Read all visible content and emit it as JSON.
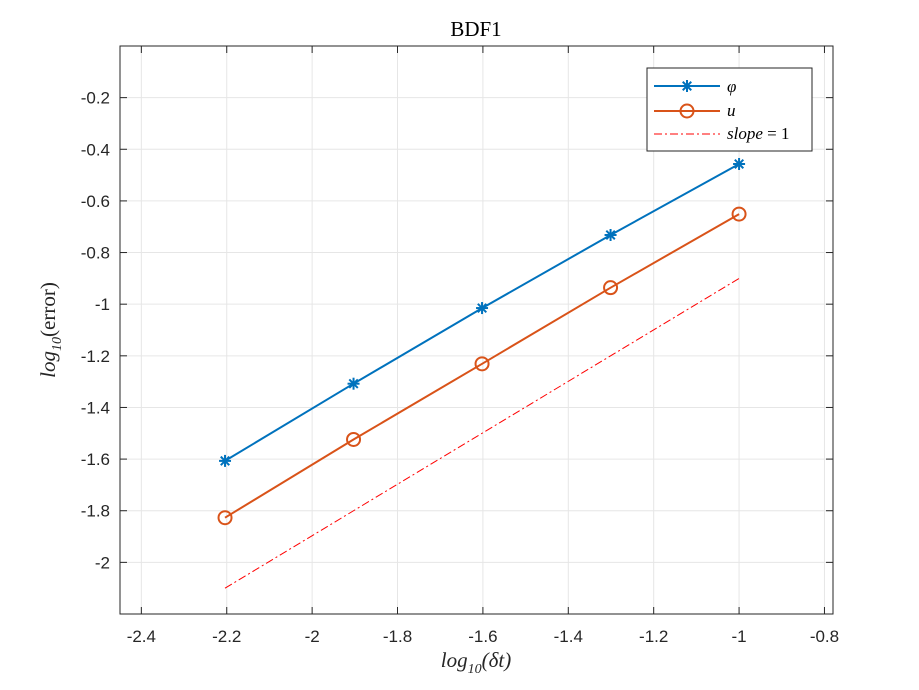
{
  "chart_data": {
    "type": "line",
    "title": "BDF1",
    "xlabel": {
      "base": "log",
      "sub": "10",
      "paren": "(δt)"
    },
    "ylabel": {
      "base": "log",
      "sub": "10",
      "paren": "(error)"
    },
    "xlim": [
      -2.45,
      -0.78
    ],
    "ylim": [
      -2.2,
      0.0
    ],
    "xticks": [
      -2.4,
      -2.2,
      -2.0,
      -1.8,
      -1.6,
      -1.4,
      -1.2,
      -1.0,
      -0.8
    ],
    "xtick_labels": [
      "-2.4",
      "-2.2",
      "-2",
      "-1.8",
      "-1.6",
      "-1.4",
      "-1.2",
      "-1",
      "-0.8"
    ],
    "yticks": [
      -2.0,
      -1.8,
      -1.6,
      -1.4,
      -1.2,
      -1.0,
      -0.8,
      -0.6,
      -0.4,
      -0.2
    ],
    "ytick_labels": [
      "-2",
      "-1.8",
      "-1.6",
      "-1.4",
      "-1.2",
      "-1",
      "-0.8",
      "-0.6",
      "-0.4",
      "-0.2"
    ],
    "grid": true,
    "legend_position": "top-right",
    "series": [
      {
        "name": "φ",
        "color": "#0072BD",
        "marker": "asterisk",
        "line": "solid",
        "x": [
          -2.204,
          -1.903,
          -1.602,
          -1.301,
          -1.0
        ],
        "y": [
          -1.607,
          -1.308,
          -1.015,
          -0.732,
          -0.457
        ]
      },
      {
        "name": "u",
        "color": "#D95319",
        "marker": "circle",
        "line": "solid",
        "x": [
          -2.204,
          -1.903,
          -1.602,
          -1.301,
          -1.0
        ],
        "y": [
          -1.827,
          -1.524,
          -1.231,
          -0.936,
          -0.651
        ]
      },
      {
        "name": "slope = 1",
        "name_parts": [
          "slope",
          " = ",
          "1"
        ],
        "color": "#FF0000",
        "marker": "none",
        "line": "dashdot",
        "x": [
          -2.204,
          -1.0
        ],
        "y": [
          -2.1,
          -0.9
        ]
      }
    ]
  }
}
